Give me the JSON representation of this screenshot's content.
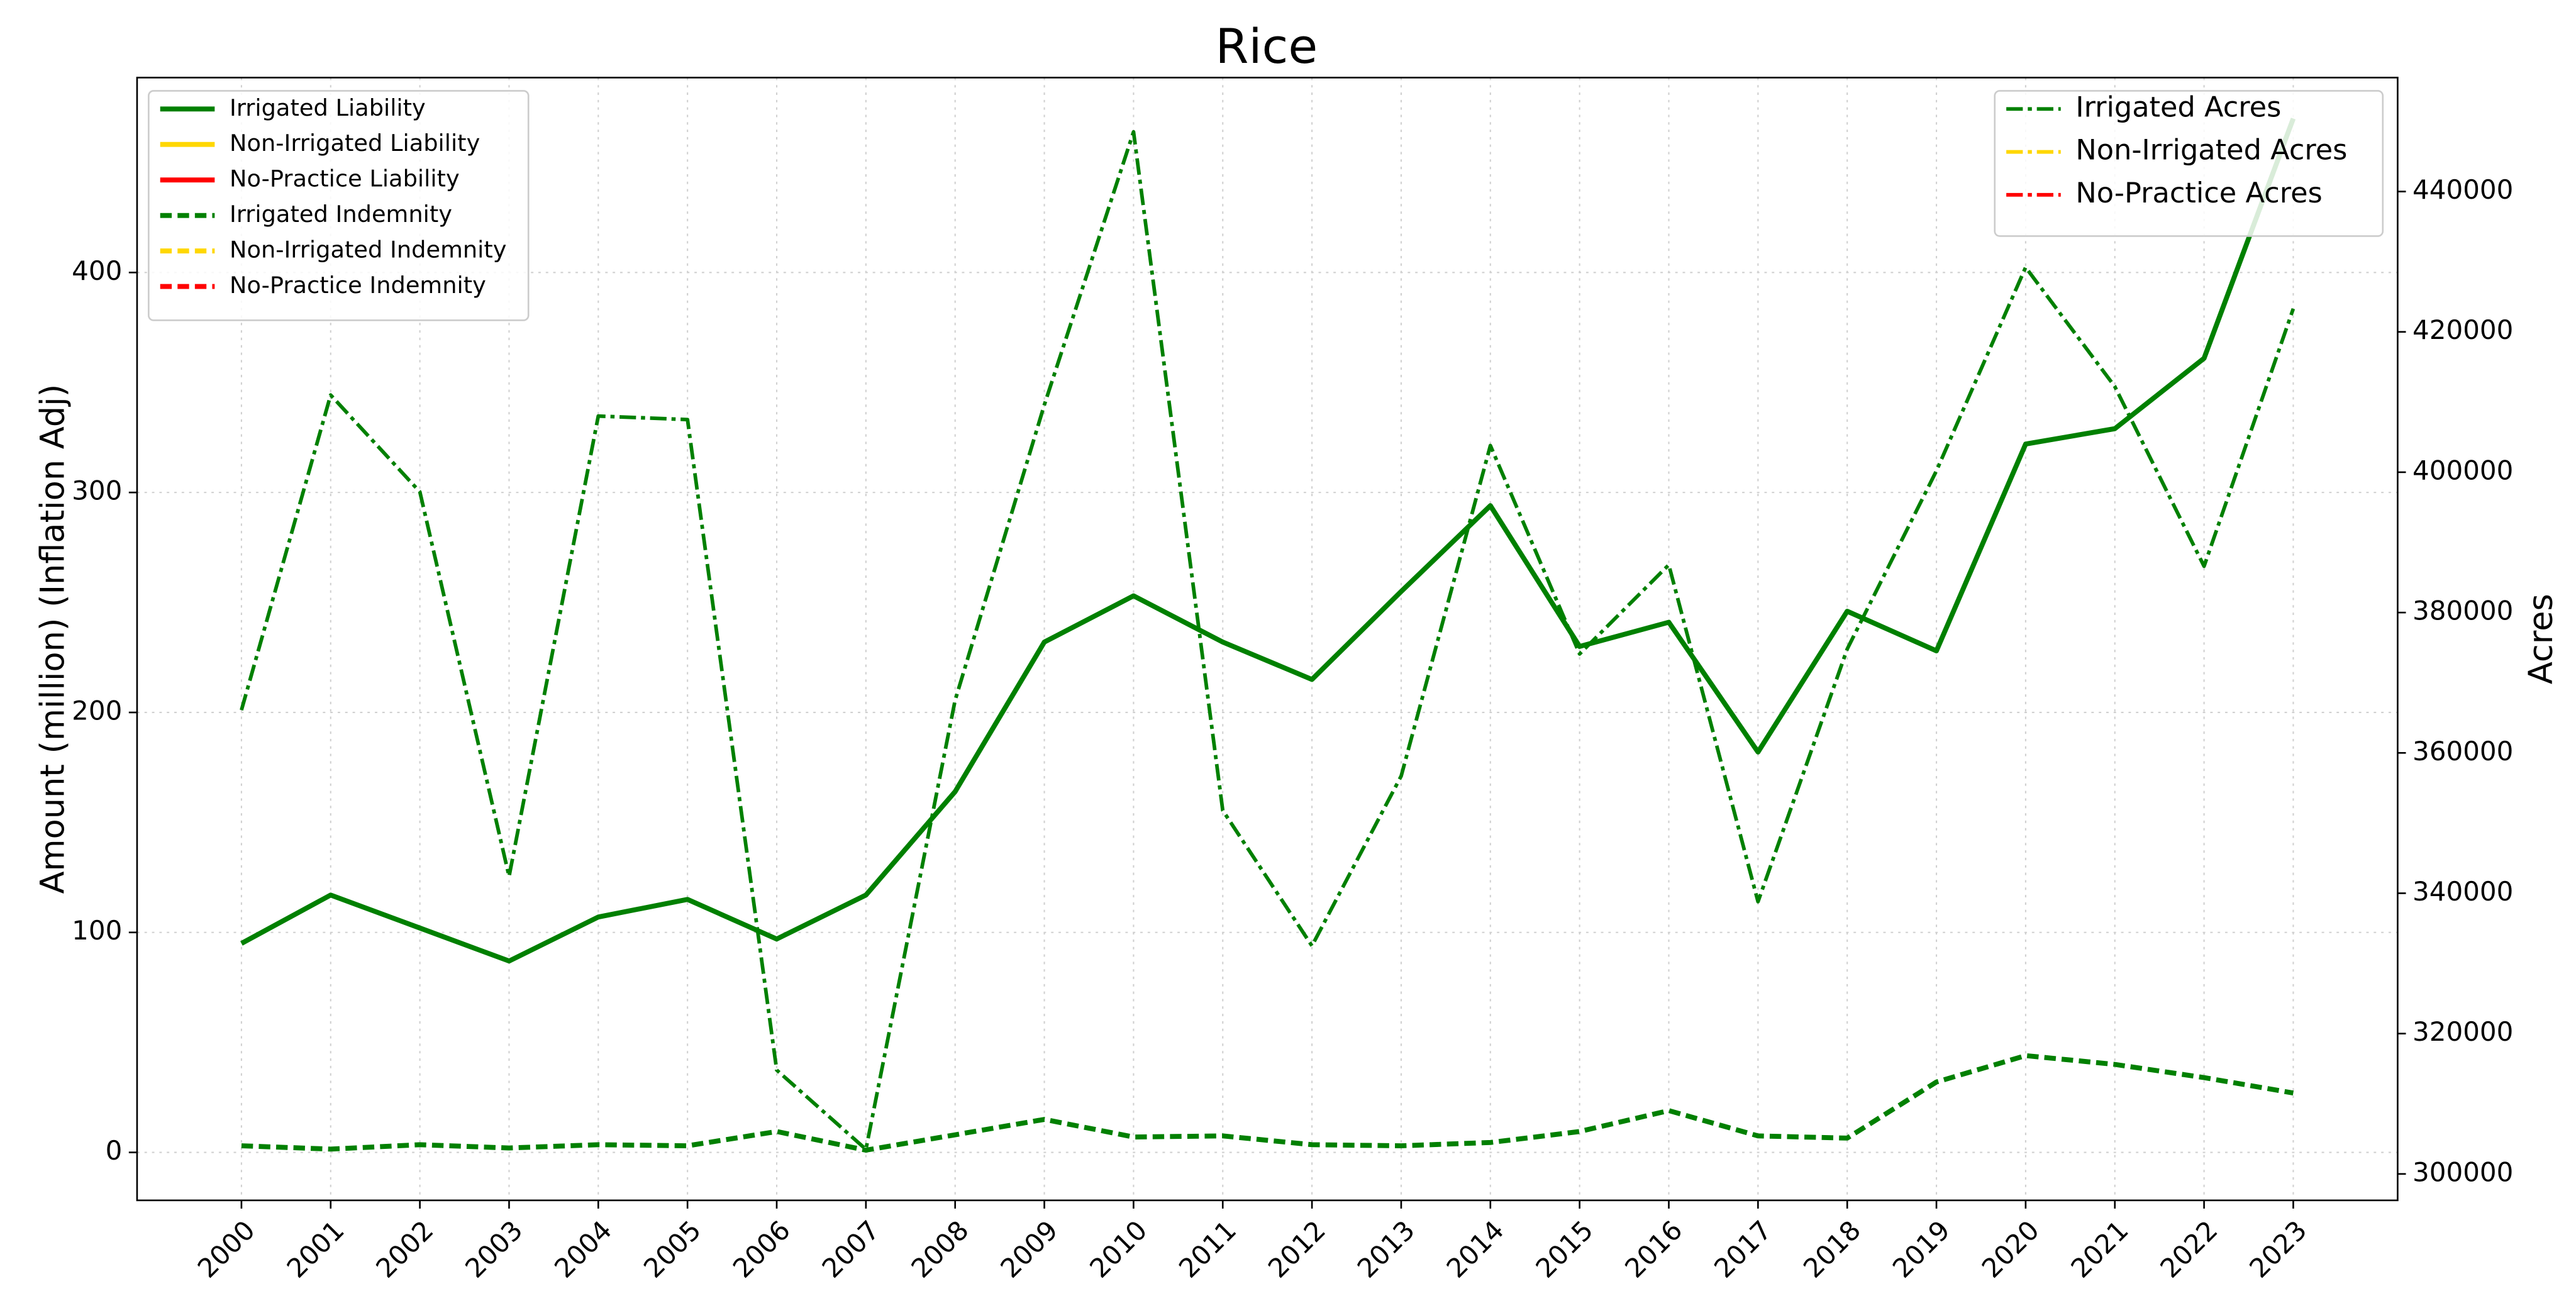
{
  "chart_data": {
    "type": "line",
    "title": "Rice",
    "ylabel": "Amount (million) (Inflation Adj)",
    "y2label": "Acres",
    "x": [
      2000,
      2001,
      2002,
      2003,
      2004,
      2005,
      2006,
      2007,
      2008,
      2009,
      2010,
      2011,
      2012,
      2013,
      2014,
      2015,
      2016,
      2017,
      2018,
      2019,
      2020,
      2021,
      2022,
      2023
    ],
    "xlim": [
      1998.83,
      2024.17
    ],
    "xticks": [
      2000,
      2001,
      2002,
      2003,
      2004,
      2005,
      2006,
      2007,
      2008,
      2009,
      2010,
      2011,
      2012,
      2013,
      2014,
      2015,
      2016,
      2017,
      2018,
      2019,
      2020,
      2021,
      2022,
      2023
    ],
    "ylim": [
      -21.8,
      488.6
    ],
    "yticks": [
      0,
      100,
      200,
      300,
      400
    ],
    "y2lim": [
      296235,
      456235
    ],
    "y2ticks": [
      300000,
      320000,
      340000,
      360000,
      380000,
      400000,
      420000,
      440000
    ],
    "grid": true,
    "legend": {
      "y": "upper left",
      "y2": "upper right"
    },
    "series": [
      {
        "name": "Irrigated Liability",
        "color": "#008000",
        "style": "solid",
        "values": [
          95,
          117,
          102,
          87,
          107,
          115,
          97,
          117,
          164,
          232,
          253,
          232,
          215,
          255,
          294,
          230,
          241,
          182,
          246,
          228,
          322,
          329,
          361,
          470
        ]
      },
      {
        "name": "Non-Irrigated Liability",
        "color": "#ffd700",
        "style": "solid",
        "values": [
          null,
          null,
          null,
          null,
          null,
          null,
          null,
          null,
          null,
          null,
          null,
          null,
          null,
          null,
          null,
          null,
          null,
          null,
          null,
          null,
          null,
          null,
          null,
          null
        ]
      },
      {
        "name": "No-Practice Liability",
        "color": "#ff0000",
        "style": "solid",
        "values": [
          null,
          null,
          null,
          null,
          null,
          null,
          null,
          null,
          null,
          null,
          null,
          null,
          null,
          null,
          null,
          null,
          null,
          null,
          null,
          null,
          null,
          null,
          null,
          null
        ]
      },
      {
        "name": "Irrigated Indemnity",
        "color": "#008000",
        "style": "dashed",
        "values": [
          3,
          1.5,
          3.5,
          2,
          3.5,
          3,
          9.5,
          1,
          8,
          15,
          7,
          7.5,
          3.5,
          3,
          4.5,
          9.5,
          19,
          7.5,
          6.5,
          32,
          44,
          40,
          34,
          27
        ]
      },
      {
        "name": "Non-Irrigated Indemnity",
        "color": "#ffd700",
        "style": "dashed",
        "values": [
          null,
          null,
          null,
          null,
          null,
          null,
          null,
          null,
          null,
          null,
          null,
          null,
          null,
          null,
          null,
          null,
          null,
          null,
          null,
          null,
          null,
          null,
          null,
          null
        ]
      },
      {
        "name": "No-Practice Indemnity",
        "color": "#ff0000",
        "style": "dashed",
        "values": [
          null,
          null,
          null,
          null,
          null,
          null,
          null,
          null,
          null,
          null,
          null,
          null,
          null,
          null,
          null,
          null,
          null,
          null,
          null,
          null,
          null,
          null,
          null,
          null
        ]
      },
      {
        "name": "Irrigated Acres",
        "color": "#008000",
        "style": "dashdot",
        "axis": "y2",
        "values": [
          366100,
          411000,
          397200,
          342400,
          408000,
          407500,
          314800,
          303500,
          367500,
          409600,
          448500,
          351800,
          332500,
          356700,
          403800,
          374100,
          386800,
          338800,
          374800,
          400200,
          429200,
          412200,
          386600,
          423300
        ]
      },
      {
        "name": "Non-Irrigated Acres",
        "color": "#ffd700",
        "style": "dashdot",
        "axis": "y2",
        "values": [
          null,
          null,
          null,
          null,
          null,
          null,
          null,
          null,
          null,
          null,
          null,
          null,
          null,
          null,
          null,
          null,
          null,
          null,
          null,
          null,
          null,
          null,
          null,
          null
        ]
      },
      {
        "name": "No-Practice Acres",
        "color": "#ff0000",
        "style": "dashdot",
        "axis": "y2",
        "values": [
          null,
          null,
          null,
          null,
          null,
          null,
          null,
          null,
          null,
          null,
          null,
          null,
          null,
          null,
          null,
          null,
          null,
          null,
          null,
          null,
          null,
          null,
          null,
          null
        ]
      }
    ]
  }
}
